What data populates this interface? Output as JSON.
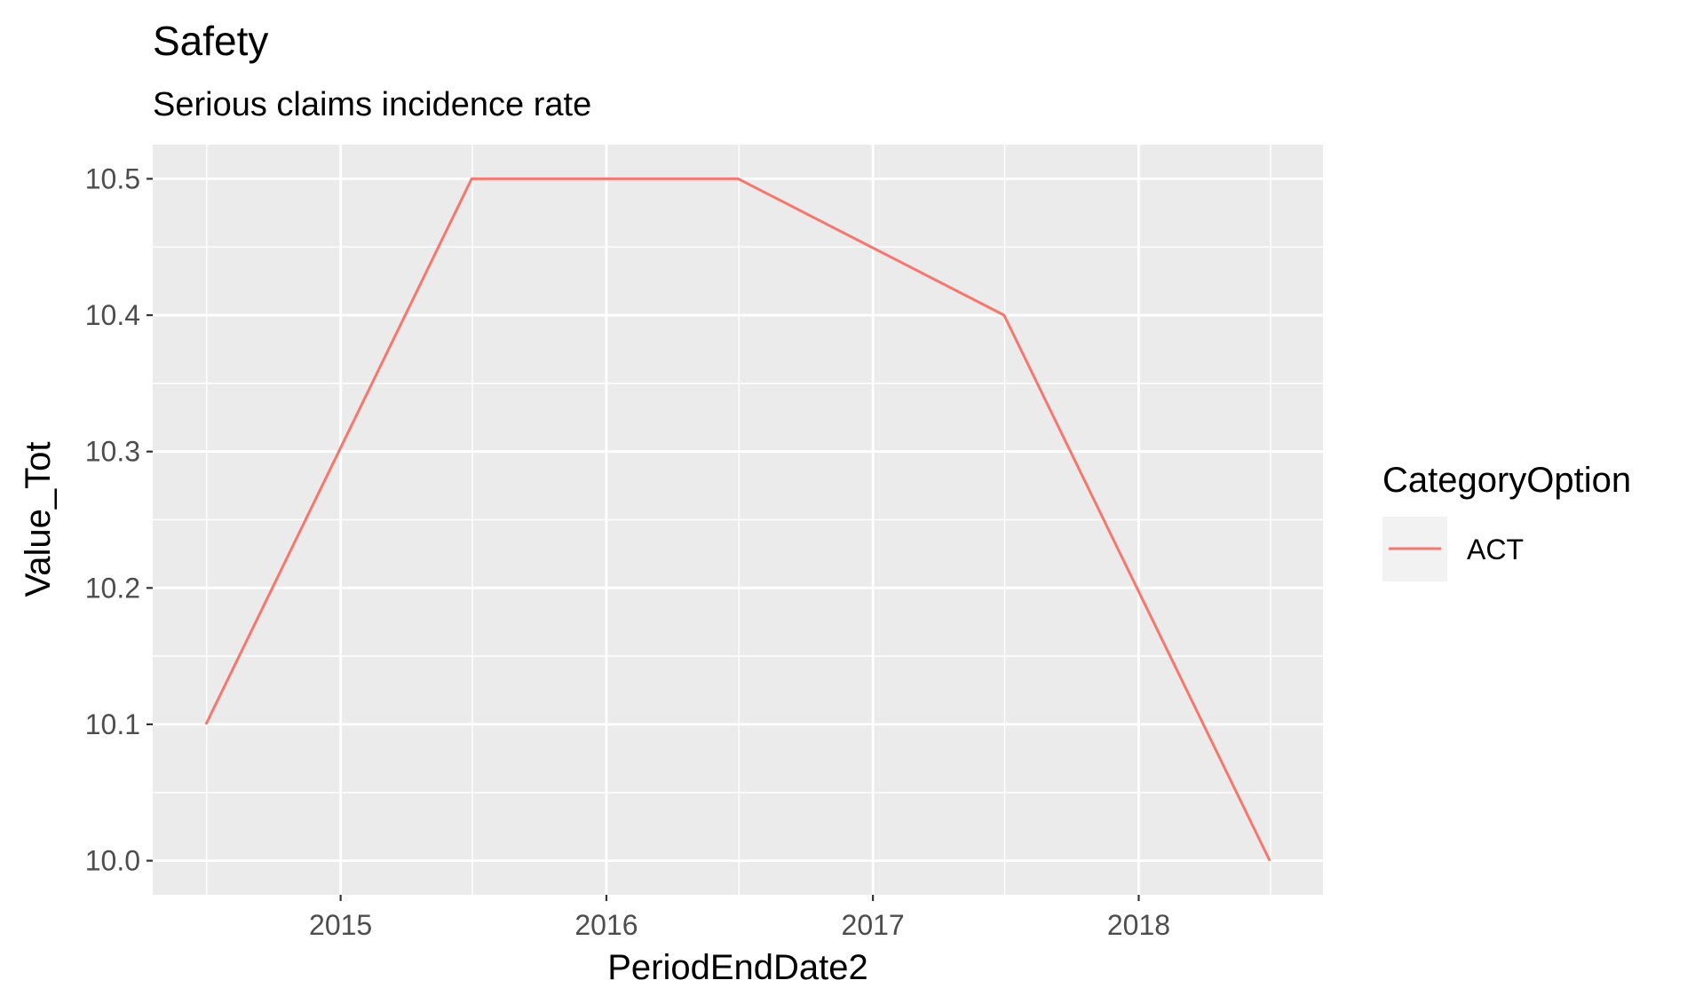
{
  "chart_data": {
    "type": "line",
    "title": "Safety",
    "subtitle": "Serious claims incidence rate",
    "xlabel": "PeriodEndDate2",
    "ylabel": "Value_Tot",
    "x": [
      "2014-06-30",
      "2015-06-30",
      "2016-06-30",
      "2017-06-30",
      "2018-06-30"
    ],
    "series": [
      {
        "name": "ACT",
        "color": "#f8766d",
        "values": [
          10.1,
          10.5,
          10.5,
          10.4,
          10.0
        ]
      }
    ],
    "x_ticks": [
      "2015",
      "2016",
      "2017",
      "2018"
    ],
    "y_ticks": [
      "10.0",
      "10.1",
      "10.2",
      "10.3",
      "10.4",
      "10.5"
    ],
    "ylim": [
      9.975,
      10.525
    ],
    "legend": {
      "title": "CategoryOption",
      "position": "right"
    },
    "grid": true,
    "panel_background": "#ebebeb"
  }
}
